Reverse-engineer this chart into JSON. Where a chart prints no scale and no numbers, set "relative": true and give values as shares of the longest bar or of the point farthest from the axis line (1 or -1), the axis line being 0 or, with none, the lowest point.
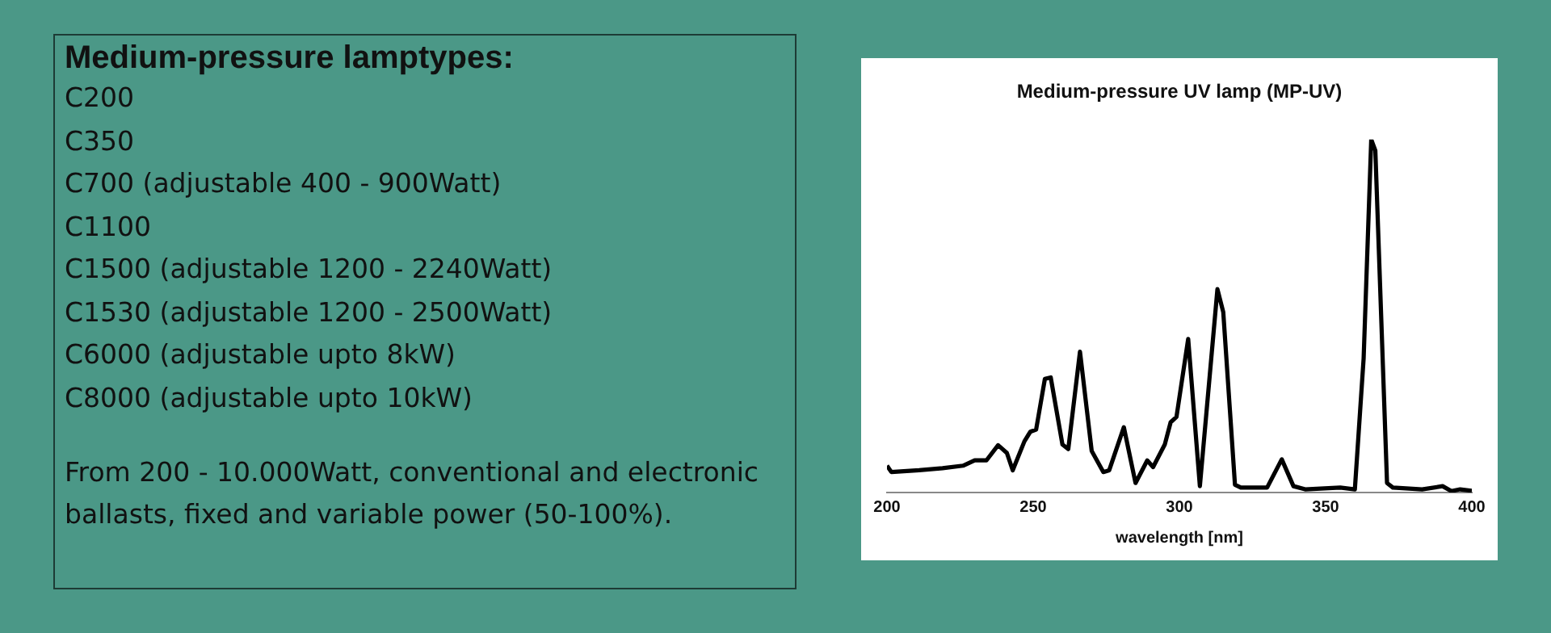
{
  "chart_data": [
    {
      "type": "other",
      "title": "Medium-pressure lamptypes:",
      "annotations": [
        "C200",
        "C350",
        "C700 (adjustable 400 - 900Watt)",
        "C1100",
        "C1500 (adjustable 1200 - 2240Watt)",
        "C1530 (adjustable 1200 - 2500Watt)",
        "C6000 (adjustable upto 8kW)",
        "C8000 (adjustable upto 10kW)",
        "From 200 - 10.000Watt, conventional  and electronic ballasts, fixed and variable power (50-100%)."
      ]
    },
    {
      "type": "line",
      "title": "Medium-pressure UV lamp (MP-UV)",
      "xlabel": "wavelength [nm]",
      "relative": true,
      "xlim": [
        200,
        400
      ],
      "xticks": [
        200,
        250,
        300,
        350,
        400
      ],
      "grid": false,
      "legend": false,
      "marker": "none",
      "line_style": "solid",
      "series": [
        {
          "color": "#000000",
          "x": [
            200,
            201.5,
            211,
            219,
            226,
            230,
            234,
            238,
            241,
            243,
            247,
            249,
            251,
            254,
            256,
            260,
            262,
            266,
            270,
            274,
            276,
            281,
            285,
            289,
            291,
            295,
            297,
            299,
            303,
            307,
            313,
            315,
            319,
            321,
            330,
            335,
            339,
            343,
            355,
            360,
            363,
            365.6,
            367,
            371,
            373,
            383,
            390,
            393,
            396,
            400
          ],
          "values": [
            0.076,
            0.058,
            0.063,
            0.069,
            0.076,
            0.091,
            0.091,
            0.134,
            0.112,
            0.063,
            0.145,
            0.172,
            0.178,
            0.322,
            0.326,
            0.136,
            0.123,
            0.399,
            0.118,
            0.058,
            0.063,
            0.185,
            0.027,
            0.091,
            0.072,
            0.136,
            0.199,
            0.214,
            0.435,
            0.018,
            0.576,
            0.511,
            0.022,
            0.014,
            0.014,
            0.094,
            0.018,
            0.009,
            0.014,
            0.009,
            0.38,
            1.0,
            0.969,
            0.027,
            0.014,
            0.009,
            0.018,
            0.004,
            0.009,
            0.005
          ]
        }
      ]
    }
  ]
}
